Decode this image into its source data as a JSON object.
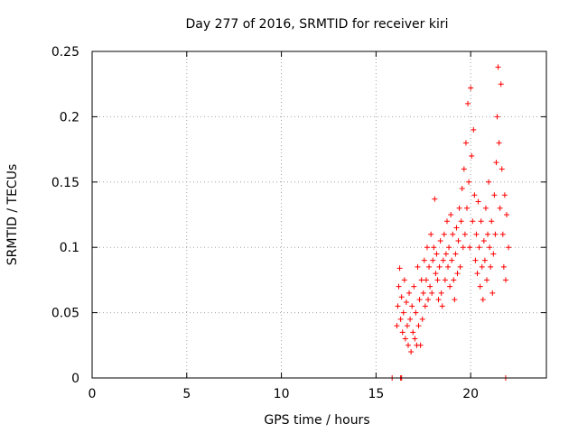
{
  "chart_data": {
    "type": "scatter",
    "title": "Day 277 of 2016, SRMTID for receiver kiri",
    "xlabel": "GPS time / hours",
    "ylabel": "SRMTID / TECUs",
    "xlim": [
      0,
      24
    ],
    "ylim": [
      0,
      0.25
    ],
    "xticks": [
      0,
      5,
      10,
      15,
      20
    ],
    "xtick_labels": [
      "0",
      "5",
      "10",
      "15",
      "20"
    ],
    "yticks": [
      0,
      0.05,
      0.1,
      0.15,
      0.2,
      0.25
    ],
    "ytick_labels": [
      "0",
      "0.05",
      "0.1",
      "0.15",
      "0.2",
      "0.25"
    ],
    "grid": true,
    "marker": "+",
    "series": [
      {
        "name": "SRMTID",
        "color": "#ff0000",
        "points": [
          [
            15.85,
            0.0
          ],
          [
            16.3,
            0.0
          ],
          [
            16.35,
            0.0
          ],
          [
            21.85,
            0.0
          ],
          [
            16.1,
            0.04
          ],
          [
            16.15,
            0.055
          ],
          [
            16.2,
            0.07
          ],
          [
            16.25,
            0.084
          ],
          [
            16.3,
            0.045
          ],
          [
            16.35,
            0.062
          ],
          [
            16.4,
            0.035
          ],
          [
            16.45,
            0.05
          ],
          [
            16.5,
            0.075
          ],
          [
            16.55,
            0.03
          ],
          [
            16.6,
            0.058
          ],
          [
            16.65,
            0.04
          ],
          [
            16.7,
            0.025
          ],
          [
            16.75,
            0.065
          ],
          [
            16.8,
            0.045
          ],
          [
            16.85,
            0.02
          ],
          [
            16.9,
            0.055
          ],
          [
            16.95,
            0.035
          ],
          [
            17.0,
            0.07
          ],
          [
            17.05,
            0.03
          ],
          [
            17.1,
            0.05
          ],
          [
            17.15,
            0.025
          ],
          [
            17.2,
            0.085
          ],
          [
            17.25,
            0.04
          ],
          [
            17.3,
            0.06
          ],
          [
            17.35,
            0.025
          ],
          [
            17.4,
            0.075
          ],
          [
            17.45,
            0.045
          ],
          [
            17.5,
            0.065
          ],
          [
            17.55,
            0.09
          ],
          [
            17.6,
            0.055
          ],
          [
            17.65,
            0.075
          ],
          [
            17.7,
            0.1
          ],
          [
            17.75,
            0.06
          ],
          [
            17.8,
            0.085
          ],
          [
            17.85,
            0.07
          ],
          [
            17.9,
            0.11
          ],
          [
            17.95,
            0.065
          ],
          [
            18.0,
            0.09
          ],
          [
            18.05,
            0.1
          ],
          [
            18.1,
            0.137
          ],
          [
            18.15,
            0.08
          ],
          [
            18.2,
            0.095
          ],
          [
            18.25,
            0.075
          ],
          [
            18.3,
            0.06
          ],
          [
            18.35,
            0.085
          ],
          [
            18.4,
            0.105
          ],
          [
            18.45,
            0.065
          ],
          [
            18.5,
            0.055
          ],
          [
            18.55,
            0.09
          ],
          [
            18.6,
            0.11
          ],
          [
            18.65,
            0.075
          ],
          [
            18.7,
            0.095
          ],
          [
            18.75,
            0.12
          ],
          [
            18.8,
            0.085
          ],
          [
            18.85,
            0.1
          ],
          [
            18.9,
            0.07
          ],
          [
            18.95,
            0.125
          ],
          [
            19.0,
            0.09
          ],
          [
            19.05,
            0.11
          ],
          [
            19.1,
            0.075
          ],
          [
            19.15,
            0.06
          ],
          [
            19.2,
            0.095
          ],
          [
            19.25,
            0.115
          ],
          [
            19.3,
            0.08
          ],
          [
            19.35,
            0.105
          ],
          [
            19.4,
            0.13
          ],
          [
            19.45,
            0.085
          ],
          [
            19.5,
            0.12
          ],
          [
            19.55,
            0.145
          ],
          [
            19.6,
            0.1
          ],
          [
            19.65,
            0.16
          ],
          [
            19.7,
            0.11
          ],
          [
            19.75,
            0.18
          ],
          [
            19.8,
            0.13
          ],
          [
            19.85,
            0.21
          ],
          [
            19.9,
            0.15
          ],
          [
            19.95,
            0.1
          ],
          [
            20.0,
            0.222
          ],
          [
            20.05,
            0.17
          ],
          [
            20.1,
            0.12
          ],
          [
            20.15,
            0.19
          ],
          [
            20.2,
            0.14
          ],
          [
            20.25,
            0.09
          ],
          [
            20.3,
            0.11
          ],
          [
            20.35,
            0.08
          ],
          [
            20.4,
            0.135
          ],
          [
            20.45,
            0.1
          ],
          [
            20.5,
            0.07
          ],
          [
            20.55,
            0.12
          ],
          [
            20.6,
            0.085
          ],
          [
            20.65,
            0.06
          ],
          [
            20.7,
            0.105
          ],
          [
            20.75,
            0.09
          ],
          [
            20.8,
            0.13
          ],
          [
            20.85,
            0.075
          ],
          [
            20.9,
            0.11
          ],
          [
            20.95,
            0.15
          ],
          [
            21.0,
            0.1
          ],
          [
            21.05,
            0.085
          ],
          [
            21.1,
            0.12
          ],
          [
            21.15,
            0.065
          ],
          [
            21.2,
            0.095
          ],
          [
            21.25,
            0.14
          ],
          [
            21.3,
            0.11
          ],
          [
            21.35,
            0.165
          ],
          [
            21.4,
            0.2
          ],
          [
            21.45,
            0.238
          ],
          [
            21.5,
            0.18
          ],
          [
            21.55,
            0.13
          ],
          [
            21.6,
            0.225
          ],
          [
            21.65,
            0.16
          ],
          [
            21.7,
            0.11
          ],
          [
            21.75,
            0.085
          ],
          [
            21.8,
            0.14
          ],
          [
            21.85,
            0.075
          ],
          [
            21.9,
            0.125
          ],
          [
            22.0,
            0.1
          ]
        ]
      }
    ]
  }
}
